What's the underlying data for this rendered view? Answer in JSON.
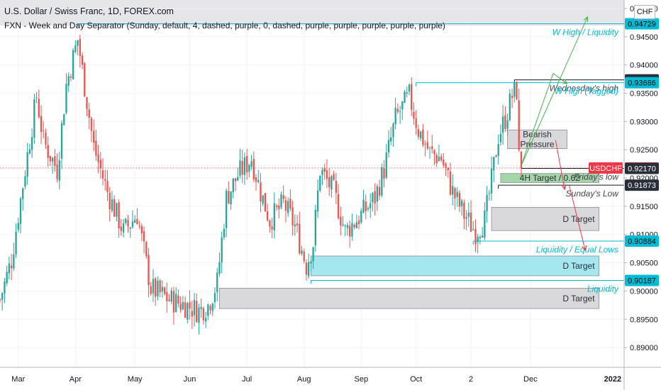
{
  "header": {
    "title": "U.S. Dollar / Swiss Franc, 1D, FOREX.com",
    "indicator": "FXN - Week and Day Separator (Sunday, default, 4, dashed, purple, 0, dashed, purple, purple, purple, purple, purple)",
    "currency": "CHF"
  },
  "colors": {
    "up": "#26a69a",
    "down": "#ef5350",
    "teal_line": "#00bcd4",
    "zone_gray": "#d9d9db",
    "zone_cyan": "#a5e7ef",
    "zone_green": "#a5d6a7",
    "badge_dark": "#2a2e39",
    "badge_teal": "#00bcd4",
    "badge_red": "#f23645",
    "arrow_green": "#4caf50",
    "arrow_red": "#f23645"
  },
  "chart_data": {
    "type": "candlestick",
    "symbol": "USDCHF",
    "timeframe": "1D",
    "ylim": [
      0.8865,
      0.9515
    ],
    "x_range": [
      0,
      273
    ],
    "y_ticks": [
      "0.95000",
      "0.94500",
      "0.94000",
      "0.93500",
      "0.93000",
      "0.92500",
      "0.92000",
      "0.91500",
      "0.91000",
      "0.90500",
      "0.90000",
      "0.89500",
      "0.89000"
    ],
    "y_tick_values": [
      0.95,
      0.945,
      0.94,
      0.935,
      0.93,
      0.925,
      0.92,
      0.915,
      0.91,
      0.905,
      0.9,
      0.895,
      0.89
    ],
    "x_ticks": [
      {
        "label": "Mar",
        "x": 8
      },
      {
        "label": "Apr",
        "x": 33
      },
      {
        "label": "May",
        "x": 59
      },
      {
        "label": "Jun",
        "x": 83
      },
      {
        "label": "Jul",
        "x": 108
      },
      {
        "label": "Aug",
        "x": 133
      },
      {
        "label": "Sep",
        "x": 158
      },
      {
        "label": "Oct",
        "x": 182
      },
      {
        "label": "2",
        "x": 206
      },
      {
        "label": "Dec",
        "x": 232
      },
      {
        "label": "2022",
        "x": 268
      }
    ],
    "anchors": [
      {
        "x": 0,
        "y": 0.8985
      },
      {
        "x": 5,
        "y": 0.9055
      },
      {
        "x": 11,
        "y": 0.9215
      },
      {
        "x": 16,
        "y": 0.9345
      },
      {
        "x": 19,
        "y": 0.9265
      },
      {
        "x": 25,
        "y": 0.9215
      },
      {
        "x": 29,
        "y": 0.9365
      },
      {
        "x": 34,
        "y": 0.9445
      },
      {
        "x": 41,
        "y": 0.9255
      },
      {
        "x": 47,
        "y": 0.9175
      },
      {
        "x": 54,
        "y": 0.9105
      },
      {
        "x": 60,
        "y": 0.9135
      },
      {
        "x": 66,
        "y": 0.9005
      },
      {
        "x": 74,
        "y": 0.8985
      },
      {
        "x": 81,
        "y": 0.8975
      },
      {
        "x": 87,
        "y": 0.8965
      },
      {
        "x": 91,
        "y": 0.8975
      },
      {
        "x": 95,
        "y": 0.9015
      },
      {
        "x": 99,
        "y": 0.9165
      },
      {
        "x": 104,
        "y": 0.9205
      },
      {
        "x": 110,
        "y": 0.9235
      },
      {
        "x": 114,
        "y": 0.9175
      },
      {
        "x": 118,
        "y": 0.9125
      },
      {
        "x": 124,
        "y": 0.9155
      },
      {
        "x": 129,
        "y": 0.9115
      },
      {
        "x": 134,
        "y": 0.9045
      },
      {
        "x": 137,
        "y": 0.9085
      },
      {
        "x": 140,
        "y": 0.9215
      },
      {
        "x": 146,
        "y": 0.9175
      },
      {
        "x": 151,
        "y": 0.9105
      },
      {
        "x": 158,
        "y": 0.9135
      },
      {
        "x": 164,
        "y": 0.9165
      },
      {
        "x": 168,
        "y": 0.9215
      },
      {
        "x": 173,
        "y": 0.9305
      },
      {
        "x": 179,
        "y": 0.9345
      },
      {
        "x": 183,
        "y": 0.9285
      },
      {
        "x": 188,
        "y": 0.9245
      },
      {
        "x": 193,
        "y": 0.9235
      },
      {
        "x": 198,
        "y": 0.9175
      },
      {
        "x": 203,
        "y": 0.9135
      },
      {
        "x": 208,
        "y": 0.9105
      },
      {
        "x": 212,
        "y": 0.9125
      },
      {
        "x": 215,
        "y": 0.9195
      },
      {
        "x": 218,
        "y": 0.9275
      },
      {
        "x": 221,
        "y": 0.9305
      },
      {
        "x": 224,
        "y": 0.9345
      },
      {
        "x": 226,
        "y": 0.9355
      },
      {
        "x": 227,
        "y": 0.9235
      },
      {
        "x": 228,
        "y": 0.9215
      }
    ],
    "price_line": 0.92177,
    "levels": [
      {
        "name": "W High / Liquidity",
        "value": 0.94729,
        "x0": 34,
        "x1": 273,
        "color": "#00bcd4"
      },
      {
        "name": "Wednesday's high",
        "value": 0.93737,
        "x0": 225,
        "x1": 273,
        "color": "#131722"
      },
      {
        "name": "W High (Tagged)",
        "value": 0.93686,
        "x0": 182,
        "x1": 273,
        "color": "#00bcd4"
      },
      {
        "name": "Friday's low",
        "value": 0.9217,
        "x0": 228,
        "x1": 273,
        "color": "#131722"
      },
      {
        "name": "Sunday's Low",
        "value": 0.91873,
        "x0": 218,
        "x1": 273,
        "color": "#131722"
      },
      {
        "name": "Liquidity / Equal Lows",
        "value": 0.90884,
        "x0": 207,
        "x1": 273,
        "color": "#00bcd4"
      },
      {
        "name": "Liquidity",
        "value": 0.90187,
        "x0": 136,
        "x1": 273,
        "color": "#00bcd4"
      }
    ],
    "zones": [
      {
        "label": "Bearish\nPressure",
        "x0": 222,
        "x1": 248,
        "y0": 0.9285,
        "y1": 0.9252,
        "fill": "#d9d9db",
        "align": "center"
      },
      {
        "label": "4H Target  / 0.62",
        "x0": 219,
        "x1": 262,
        "y0": 0.9208,
        "y1": 0.9192,
        "fill": "#a5d6a7",
        "align": "center"
      },
      {
        "label": "D Target",
        "x0": 215,
        "x1": 262,
        "y0": 0.9148,
        "y1": 0.9107,
        "fill": "#d9d9db",
        "align": "right"
      },
      {
        "label": "D Target",
        "x0": 136,
        "x1": 262,
        "y0": 0.9062,
        "y1": 0.9027,
        "fill": "#a5e7ef",
        "align": "right"
      },
      {
        "label": "D Target",
        "x0": 96,
        "x1": 262,
        "y0": 0.9005,
        "y1": 0.8969,
        "fill": "#d9d9db",
        "align": "right"
      }
    ],
    "badges": [
      {
        "text": "0.95000",
        "value": 0.95,
        "style": "label"
      },
      {
        "text": "0.94729",
        "value": 0.94729,
        "style": "teal"
      },
      {
        "text": "0.93737",
        "value": 0.93737,
        "style": "dark"
      },
      {
        "text": "0.93686",
        "value": 0.93686,
        "style": "teal"
      },
      {
        "text": "USDCHF",
        "value": 0.92177,
        "style": "red_name"
      },
      {
        "text": "0.92177",
        "value": 0.92177,
        "style": "red"
      },
      {
        "text": "0.92170",
        "value": 0.9217,
        "style": "dark"
      },
      {
        "text": "0.91873",
        "value": 0.91873,
        "style": "dark"
      },
      {
        "text": "0.90884",
        "value": 0.90884,
        "style": "teal"
      },
      {
        "text": "0.90187",
        "value": 0.90187,
        "style": "teal"
      }
    ],
    "paths": [
      {
        "color": "#4caf50",
        "points": [
          [
            228,
            0.9223
          ],
          [
            242,
            0.9385
          ],
          [
            248,
            0.9367
          ]
        ]
      },
      {
        "color": "#4caf50",
        "points": [
          [
            228,
            0.9222
          ],
          [
            257,
            0.9485
          ]
        ]
      },
      {
        "color": "#f23645",
        "points": [
          [
            243,
            0.9267
          ],
          [
            247,
            0.918
          ]
        ]
      },
      {
        "color": "#f23645",
        "points": [
          [
            249,
            0.9187
          ],
          [
            256,
            0.9072
          ]
        ]
      }
    ]
  }
}
